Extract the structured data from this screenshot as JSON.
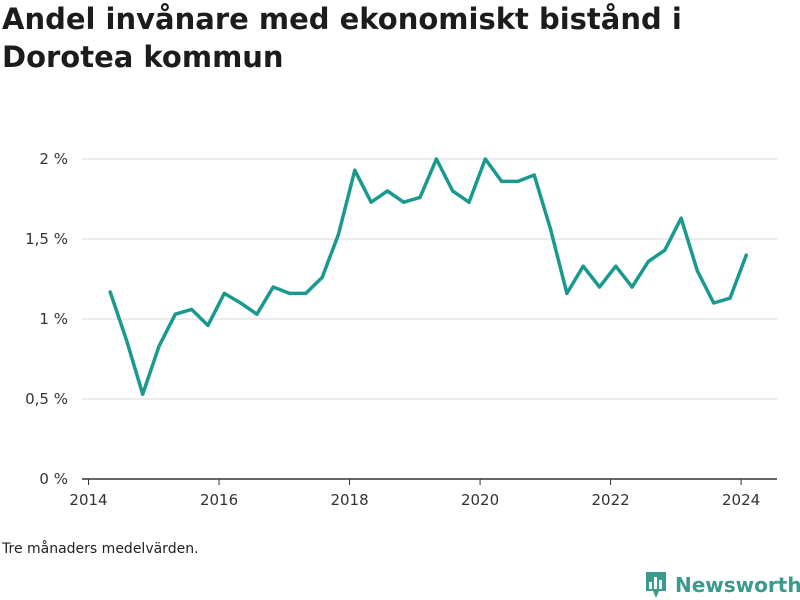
{
  "chart_data": {
    "type": "line",
    "title": "Andel invånare med ekonomiskt bistånd i Dorotea kommun",
    "xlabel": "",
    "ylabel": "",
    "x_ticks": [
      "2014",
      "2016",
      "2018",
      "2020",
      "2022",
      "2024"
    ],
    "y_ticks": [
      "0 %",
      "0,5 %",
      "1 %",
      "1,5 %",
      "2 %"
    ],
    "xlim": [
      2013.9,
      2024.55
    ],
    "ylim": [
      0,
      2
    ],
    "grid": "horizontal",
    "line_color": "#1a9a8e",
    "series": [
      {
        "x": [
          2014.33,
          2014.58,
          2014.83,
          2015.08,
          2015.33,
          2015.58,
          2015.83,
          2016.08,
          2016.33,
          2016.58,
          2016.83,
          2017.08,
          2017.33,
          2017.58,
          2017.83,
          2018.08,
          2018.33,
          2018.58,
          2018.83,
          2019.08,
          2019.33,
          2019.58,
          2019.83,
          2020.08,
          2020.33,
          2020.58,
          2020.83,
          2021.08,
          2021.33,
          2021.58,
          2021.83,
          2022.08,
          2022.33,
          2022.58,
          2022.83,
          2023.08,
          2023.33,
          2023.58,
          2023.83,
          2024.08
        ],
        "values": [
          1.17,
          0.87,
          0.53,
          0.83,
          1.03,
          1.06,
          0.96,
          1.16,
          1.1,
          1.03,
          1.2,
          1.16,
          1.16,
          1.26,
          1.53,
          1.93,
          1.73,
          1.8,
          1.73,
          1.76,
          2.0,
          1.8,
          1.73,
          2.0,
          1.86,
          1.86,
          1.9,
          1.56,
          1.16,
          1.33,
          1.2,
          1.33,
          1.2,
          1.36,
          1.43,
          1.63,
          1.3,
          1.1,
          1.13,
          1.4
        ]
      }
    ]
  },
  "footer": {
    "note": "Tre månaders medelvärden.",
    "brand": "Newsworthy"
  },
  "colors": {
    "brand": "#3a9a8e",
    "grid": "#d9d9d9",
    "axis": "#333333"
  }
}
